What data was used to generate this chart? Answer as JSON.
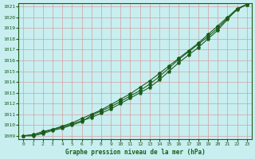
{
  "xlabel": "Graphe pression niveau de la mer (hPa)",
  "xlim": [
    -0.5,
    23.5
  ],
  "ylim": [
    1008.7,
    1021.3
  ],
  "yticks": [
    1009,
    1010,
    1011,
    1012,
    1013,
    1014,
    1015,
    1016,
    1017,
    1018,
    1019,
    1020,
    1021
  ],
  "xticks": [
    0,
    1,
    2,
    3,
    4,
    5,
    6,
    7,
    8,
    9,
    10,
    11,
    12,
    13,
    14,
    15,
    16,
    17,
    18,
    19,
    20,
    21,
    22,
    23
  ],
  "bg_color": "#c8eef0",
  "grid_color": "#d4a0a0",
  "line_color": "#1a5c1a",
  "line1_x": [
    0,
    1,
    2,
    3,
    4,
    5,
    6,
    7,
    8,
    9,
    10,
    11,
    12,
    13,
    14,
    15,
    16,
    17,
    18,
    19,
    20,
    21,
    22,
    23
  ],
  "line1_y": [
    1009.0,
    1009.1,
    1009.3,
    1009.6,
    1009.8,
    1010.1,
    1010.4,
    1010.7,
    1011.1,
    1011.5,
    1012.0,
    1012.5,
    1013.0,
    1013.5,
    1014.2,
    1015.0,
    1015.8,
    1016.5,
    1017.2,
    1018.0,
    1018.8,
    1019.8,
    1020.8,
    1021.2
  ],
  "line2_x": [
    0,
    1,
    2,
    3,
    4,
    5,
    6,
    7,
    8,
    9,
    10,
    11,
    12,
    13,
    14,
    15,
    16,
    17,
    18,
    19,
    20,
    21,
    22,
    23
  ],
  "line2_y": [
    1009.0,
    1009.0,
    1009.2,
    1009.5,
    1009.7,
    1010.0,
    1010.3,
    1010.9,
    1011.3,
    1011.7,
    1012.2,
    1012.7,
    1013.2,
    1013.8,
    1014.5,
    1015.3,
    1016.1,
    1016.8,
    1017.5,
    1018.2,
    1019.0,
    1019.9,
    1020.7,
    1021.2
  ],
  "line3_x": [
    0,
    1,
    2,
    3,
    4,
    5,
    6,
    7,
    8,
    9,
    10,
    11,
    12,
    13,
    14,
    15,
    16,
    17,
    18,
    19,
    20,
    21,
    22,
    23
  ],
  "line3_y": [
    1009.0,
    1009.1,
    1009.4,
    1009.6,
    1009.9,
    1010.2,
    1010.6,
    1011.0,
    1011.4,
    1011.9,
    1012.4,
    1012.9,
    1013.5,
    1014.1,
    1014.8,
    1015.5,
    1016.2,
    1016.9,
    1017.6,
    1018.4,
    1019.2,
    1020.0,
    1020.8,
    1021.2
  ]
}
